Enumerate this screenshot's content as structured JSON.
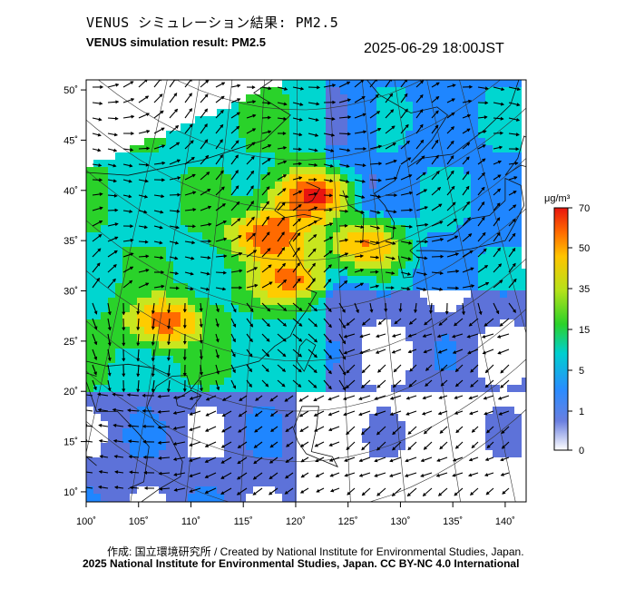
{
  "header": {
    "title_jp": "VENUS シミュレーション結果: PM2.5",
    "title_en": "VENUS simulation result: PM2.5",
    "datetime": "2025-06-29 18:00JST"
  },
  "footer": {
    "credit": "作成: 国立環境研究所 / Created by National Institute for Environmental Studies, Japan.",
    "license": "2025 National Institute for Environmental Studies, Japan. CC BY-NC 4.0 International"
  },
  "chart_data": {
    "type": "heatmap",
    "variable": "PM2.5",
    "x_ticks": [
      "100˚",
      "105˚",
      "110˚",
      "115˚",
      "120˚",
      "125˚",
      "130˚",
      "135˚",
      "140˚"
    ],
    "y_ticks": [
      "50˚",
      "45˚",
      "40˚",
      "35˚",
      "30˚",
      "25˚",
      "20˚",
      "15˚",
      "10˚"
    ],
    "xlim": [
      100,
      142
    ],
    "ylim": [
      9,
      51
    ],
    "colorbar": {
      "unit": "μg/m³",
      "ticks": [
        "0",
        "1",
        "5",
        "15",
        "35",
        "50",
        "70"
      ],
      "colors": [
        "#ffffff",
        "#5d72d9",
        "#1f86ff",
        "#00d6d0",
        "#2ad22a",
        "#c8e61f",
        "#ffcc00",
        "#ff6a00",
        "#e8150f"
      ]
    },
    "hotspots": [
      {
        "lon": 117.5,
        "lat": 35.5,
        "value": 65
      },
      {
        "lon": 121.5,
        "lat": 39.5,
        "value": 70
      },
      {
        "lon": 107.5,
        "lat": 27.0,
        "value": 55
      },
      {
        "lon": 126.5,
        "lat": 34.5,
        "value": 55
      },
      {
        "lon": 119.5,
        "lat": 31.0,
        "value": 50
      }
    ],
    "wind_vectors": true
  }
}
